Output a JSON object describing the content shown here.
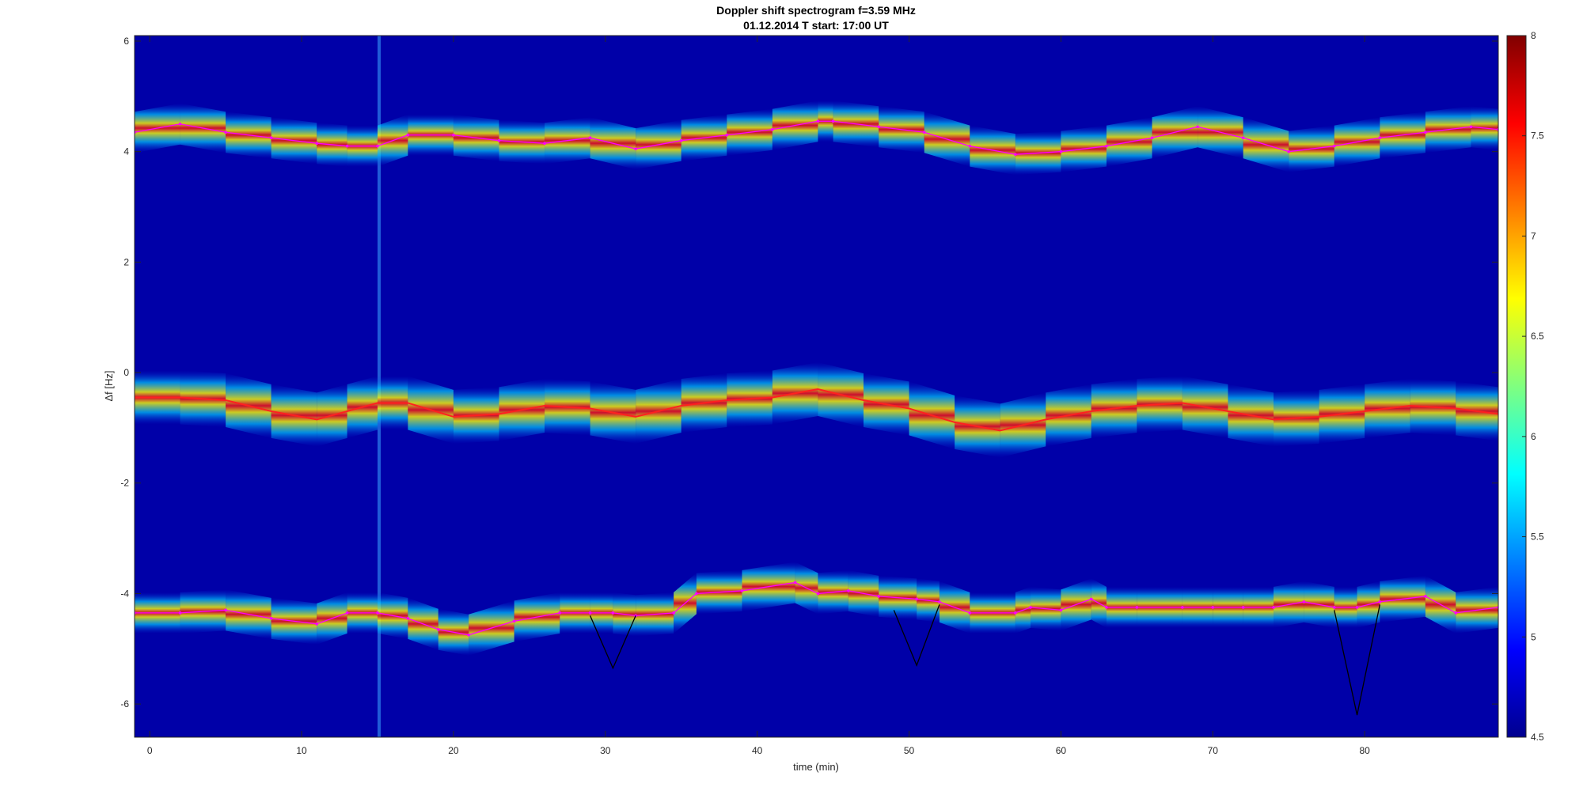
{
  "chart_data": {
    "type": "heatmap",
    "title": "Doppler shift spectrogram f=3.59 MHz",
    "subtitle": "01.12.2014   T start: 17:00 UT",
    "xlabel": "time (min)",
    "ylabel": "Δf [Hz]",
    "xlim": [
      -1,
      88.8
    ],
    "ylim": [
      -6.6,
      6.1
    ],
    "xticks": [
      "0",
      "10",
      "20",
      "30",
      "40",
      "50",
      "60",
      "70",
      "80"
    ],
    "yticks": [
      "6",
      "4",
      "2",
      "0",
      "-2",
      "-4",
      "-6"
    ],
    "colormap": "jet",
    "colorbar": {
      "range": [
        4.5,
        8
      ],
      "ticks": [
        "8",
        "7.5",
        "7",
        "6.5",
        "6",
        "5.5",
        "5",
        "4.5"
      ]
    },
    "series": [
      {
        "color": "#ff00ff",
        "x": [
          -1,
          2,
          5,
          8,
          11,
          13,
          15,
          17,
          20,
          23,
          26,
          29,
          32,
          35,
          38,
          41,
          44,
          45,
          48,
          51,
          54,
          57,
          60,
          63,
          66,
          69,
          72,
          75,
          78,
          81,
          84,
          87,
          88.8
        ],
        "y": [
          4.35,
          4.5,
          4.35,
          4.25,
          4.15,
          4.1,
          4.1,
          4.3,
          4.3,
          4.2,
          4.15,
          4.25,
          4.05,
          4.2,
          4.3,
          4.4,
          4.55,
          4.55,
          4.45,
          4.35,
          4.1,
          3.95,
          4.0,
          4.1,
          4.25,
          4.45,
          4.25,
          4.0,
          4.1,
          4.25,
          4.35,
          4.45,
          4.4
        ]
      },
      {
        "color": "#ff2020",
        "x": [
          -1,
          2,
          5,
          8,
          11,
          13,
          15,
          17,
          20,
          23,
          26,
          29,
          32,
          35,
          38,
          41,
          44,
          47,
          50,
          53,
          56,
          59,
          62,
          65,
          68,
          71,
          74,
          77,
          80,
          83,
          86,
          88.8
        ],
        "y": [
          -0.45,
          -0.45,
          -0.5,
          -0.7,
          -0.85,
          -0.7,
          -0.55,
          -0.55,
          -0.8,
          -0.75,
          -0.6,
          -0.65,
          -0.8,
          -0.6,
          -0.5,
          -0.45,
          -0.3,
          -0.5,
          -0.65,
          -0.9,
          -1.05,
          -0.85,
          -0.7,
          -0.6,
          -0.55,
          -0.7,
          -0.85,
          -0.8,
          -0.7,
          -0.6,
          -0.65,
          -0.75
        ]
      },
      {
        "color": "#ff00ff",
        "x": [
          -1,
          2,
          5,
          8,
          11,
          13,
          15,
          17,
          19,
          21,
          24,
          27,
          29,
          30.5,
          32,
          34.5,
          36,
          39,
          42.5,
          44,
          46,
          48,
          50.5,
          52,
          54,
          57,
          58,
          60,
          62,
          63,
          65,
          68,
          70,
          72,
          74,
          76,
          78,
          79.5,
          81,
          84,
          86,
          88.8
        ],
        "y": [
          -4.35,
          -4.35,
          -4.3,
          -4.45,
          -4.55,
          -4.35,
          -4.35,
          -4.45,
          -4.65,
          -4.75,
          -4.5,
          -4.35,
          -4.35,
          -4.35,
          -4.4,
          -4.35,
          -4.0,
          -3.95,
          -3.8,
          -4.0,
          -3.95,
          -4.05,
          -4.1,
          -4.15,
          -4.35,
          -4.35,
          -4.25,
          -4.3,
          -4.1,
          -4.25,
          -4.25,
          -4.25,
          -4.25,
          -4.25,
          -4.25,
          -4.15,
          -4.25,
          -4.25,
          -4.15,
          -4.05,
          -4.35,
          -4.25
        ]
      },
      {
        "color": "#000000",
        "x": [
          29,
          30.5,
          32
        ],
        "y": [
          -4.4,
          -5.35,
          -4.4
        ]
      },
      {
        "color": "#000000",
        "x": [
          49,
          50.5,
          52
        ],
        "y": [
          -4.3,
          -5.3,
          -4.2
        ]
      },
      {
        "color": "#000000",
        "x": [
          78,
          79.5,
          81
        ],
        "y": [
          -4.3,
          -6.2,
          -4.2
        ]
      }
    ]
  }
}
